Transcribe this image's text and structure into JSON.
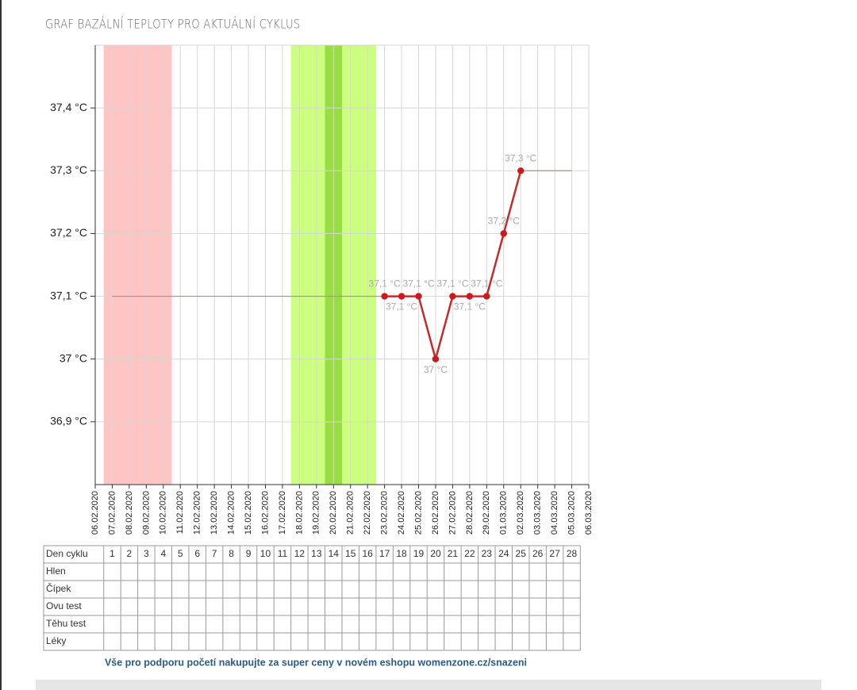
{
  "chart_data": {
    "type": "line",
    "title": "GRAF BAZÁLNÍ TEPLOTY PRO AKTUÁLNÍ CYKLUS",
    "categories": [
      "06.02.2020",
      "07.02.2020",
      "08.02.2020",
      "09.02.2020",
      "10.02.2020",
      "11.02.2020",
      "12.02.2020",
      "13.02.2020",
      "14.02.2020",
      "15.02.2020",
      "16.02.2020",
      "17.02.2020",
      "18.02.2020",
      "19.02.2020",
      "20.02.2020",
      "21.02.2020",
      "22.02.2020",
      "23.02.2020",
      "24.02.2020",
      "25.02.2020",
      "26.02.2020",
      "27.02.2020",
      "28.02.2020",
      "29.02.2020",
      "01.03.2020",
      "02.03.2020",
      "03.03.2020",
      "04.03.2020",
      "05.03.2020",
      "06.03.2020"
    ],
    "series": [
      {
        "color": "#c62a2a",
        "values": [
          null,
          null,
          null,
          null,
          null,
          null,
          null,
          null,
          null,
          null,
          null,
          null,
          null,
          null,
          null,
          null,
          null,
          37.1,
          37.1,
          37.1,
          37.0,
          37.1,
          37.1,
          37.1,
          37.2,
          37.3,
          null,
          null,
          null,
          null
        ],
        "value_labels": [
          null,
          null,
          null,
          null,
          null,
          null,
          null,
          null,
          null,
          null,
          null,
          null,
          null,
          null,
          null,
          null,
          null,
          "37,1 °C",
          "37,1 °C",
          "37,1 °C",
          "37 °C",
          "37,1 °C",
          "37,1 °C",
          "37,1 °C",
          "37,2 °C",
          "37,3 °C",
          null,
          null,
          null,
          null
        ]
      },
      {
        "color": "#b98a8a",
        "values": [
          null,
          37.1,
          37.1,
          37.1,
          37.1,
          37.1,
          37.1,
          37.1,
          37.1,
          37.1,
          37.1,
          37.1,
          37.1,
          37.1,
          37.1,
          37.1,
          37.1,
          37.1,
          null,
          null,
          null,
          null,
          null,
          null,
          null,
          37.3,
          37.3,
          37.3,
          37.3,
          null
        ]
      }
    ],
    "bands": [
      {
        "from_day": 1,
        "to_day": 4,
        "color": "#ffc4c4"
      },
      {
        "from_day": 12,
        "to_day": 16,
        "color": "#ccff80"
      },
      {
        "from_day": 14,
        "to_day": 14,
        "color": "#99dd44"
      }
    ],
    "ylim": [
      36.8,
      37.5
    ],
    "yticks": [
      {
        "value": 36.9,
        "label": "36,9 °C"
      },
      {
        "value": 37,
        "label": "37 °C"
      },
      {
        "value": 37.1,
        "label": "37,1 °C"
      },
      {
        "value": 37.2,
        "label": "37,2 °C"
      },
      {
        "value": 37.3,
        "label": "37,3 °C"
      },
      {
        "value": 37.4,
        "label": "37,4 °C"
      }
    ],
    "grid": true
  },
  "table": {
    "header_label": "Den cyklu",
    "days": [
      1,
      2,
      3,
      4,
      5,
      6,
      7,
      8,
      9,
      10,
      11,
      12,
      13,
      14,
      15,
      16,
      17,
      18,
      19,
      20,
      21,
      22,
      23,
      24,
      25,
      26,
      27,
      28
    ],
    "row_labels": [
      "Hlen",
      "Čípek",
      "Ovu test",
      "Těhu test",
      "Léky"
    ]
  },
  "footer": {
    "link": "Vše pro podporu početí nakupujte za super ceny v novém eshopu womenzone.cz/snazeni"
  }
}
